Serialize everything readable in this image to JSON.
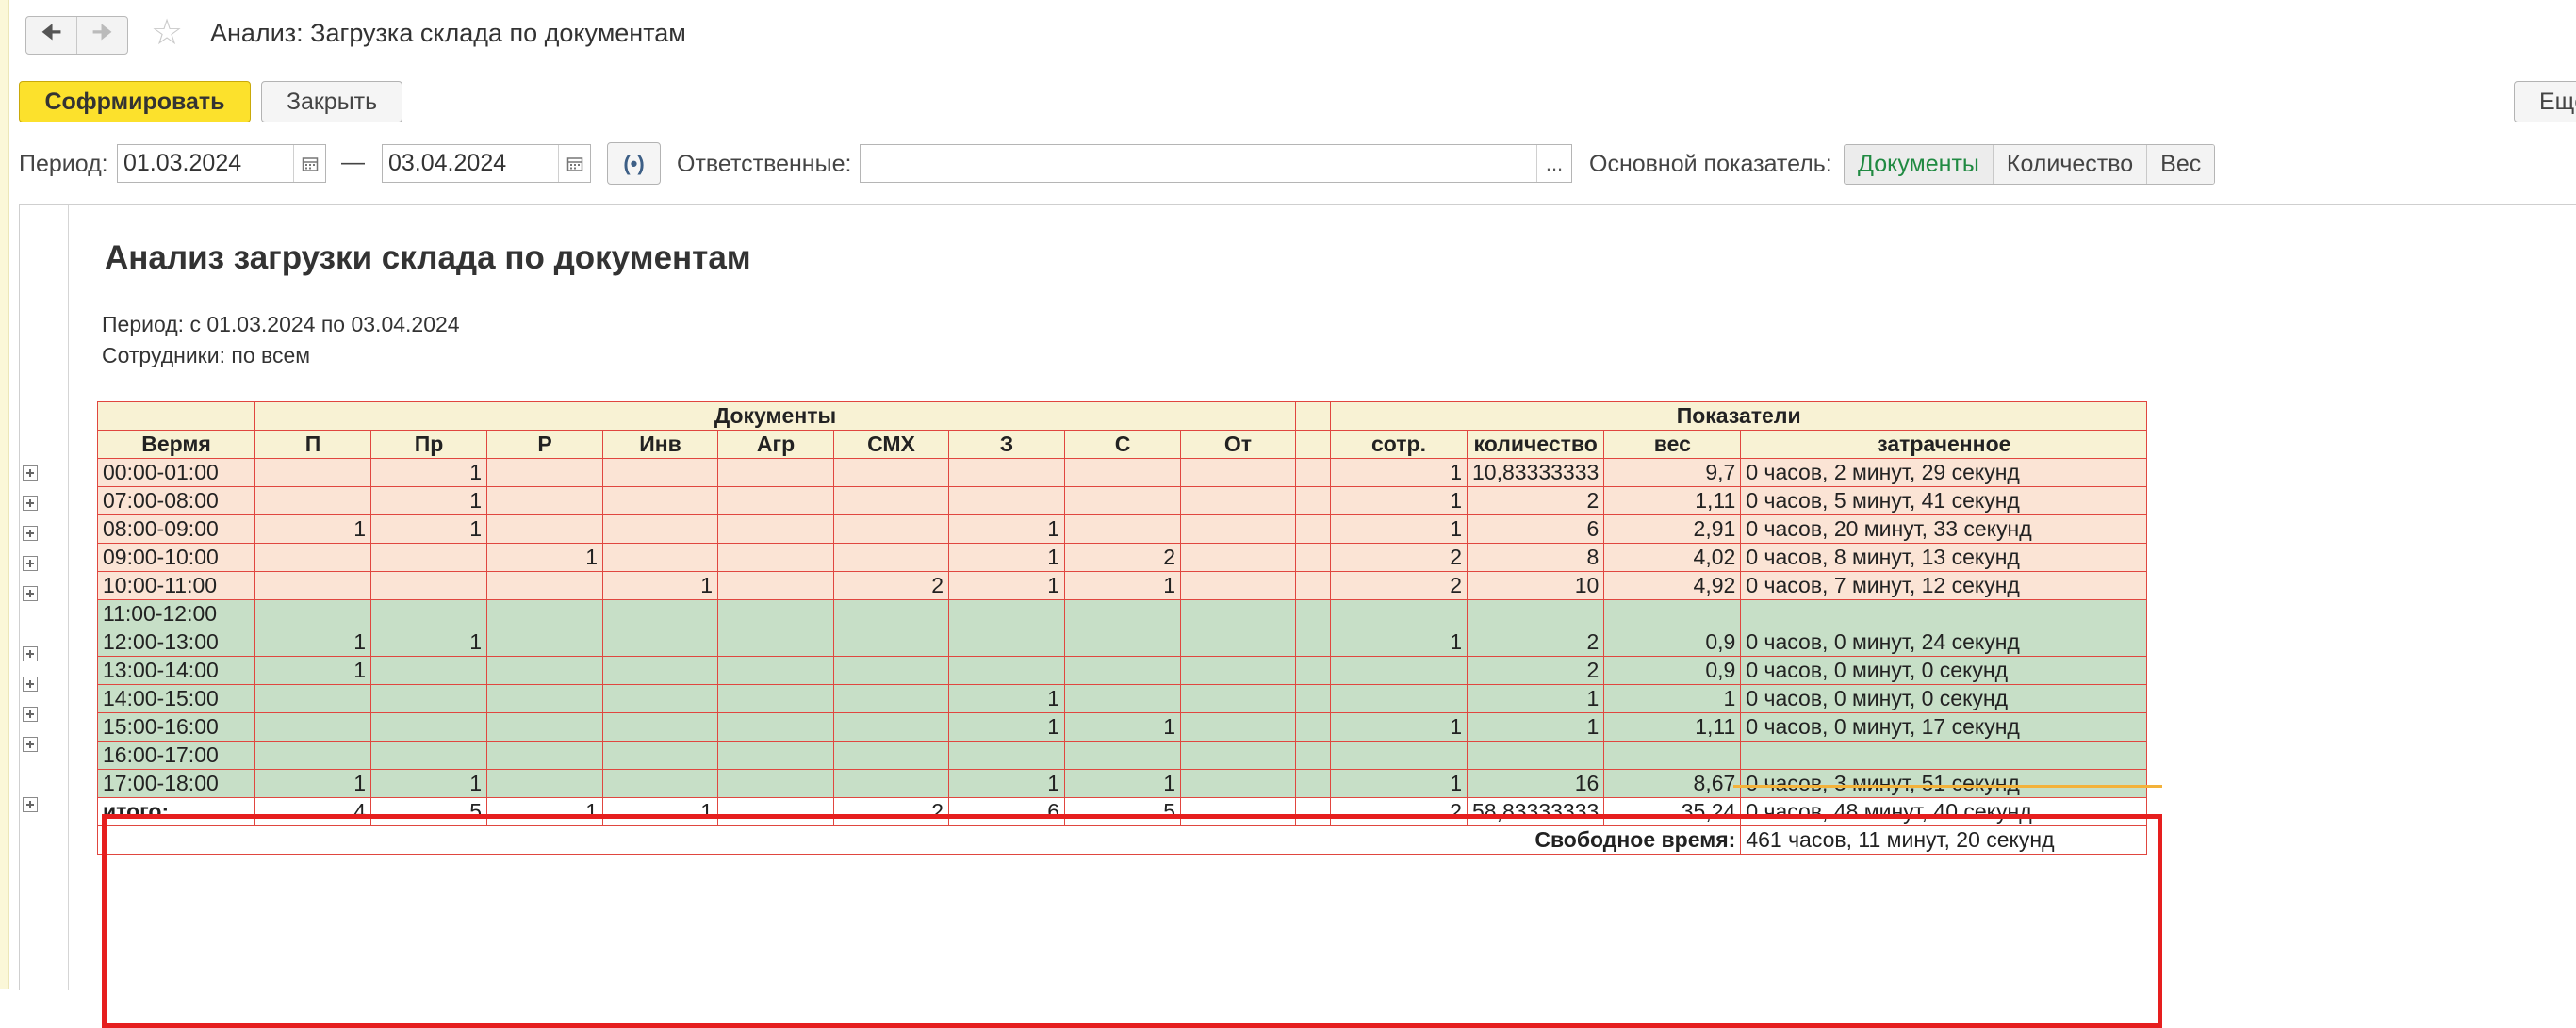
{
  "window": {
    "title": "Анализ: Загрузка склада по документам",
    "back_icon": "arrow-left-icon",
    "forward_icon": "arrow-right-icon",
    "favorite_icon": "star-icon"
  },
  "toolbar": {
    "generate_label": "Софрмировать",
    "close_label": "Закрыть",
    "more_label": "Ещё"
  },
  "filters": {
    "period_label": "Период:",
    "date_from": "01.03.2024",
    "dash": "—",
    "date_to": "03.04.2024",
    "responsible_label": "Ответственные:",
    "responsible_value": "",
    "dots": "...",
    "indicator_label": "Основной показатель:",
    "indicator_options": [
      "Документы",
      "Количество",
      "Вес"
    ],
    "indicator_selected": "Документы"
  },
  "report": {
    "title": "Анализ загрузки склада по документам",
    "period_line": "Период: с 01.03.2024 по 03.04.2024",
    "employees_line": "Сотрудники: по всем",
    "group_documents": "Документы",
    "group_indicators": "Показатели",
    "columns": [
      "Вермя",
      "П",
      "Пр",
      "Р",
      "Инв",
      "Агр",
      "СМХ",
      "З",
      "С",
      "От",
      "",
      "сотр.",
      "количество",
      "вес",
      "затраченное"
    ],
    "rows": [
      [
        "00:00-01:00",
        "",
        "1",
        "",
        "",
        "",
        "",
        "",
        "",
        "",
        "",
        "1",
        "10,83333333",
        "9,7",
        "0 часов, 2 минут, 29 секунд"
      ],
      [
        "07:00-08:00",
        "",
        "1",
        "",
        "",
        "",
        "",
        "",
        "",
        "",
        "",
        "1",
        "2",
        "1,11",
        "0 часов, 5 минут, 41 секунд"
      ],
      [
        "08:00-09:00",
        "1",
        "1",
        "",
        "",
        "",
        "",
        "1",
        "",
        "",
        "",
        "1",
        "6",
        "2,91",
        "0 часов, 20 минут, 33 секунд"
      ],
      [
        "09:00-10:00",
        "",
        "",
        "1",
        "",
        "",
        "",
        "1",
        "2",
        "",
        "",
        "2",
        "8",
        "4,02",
        "0 часов, 8 минут, 13 секунд"
      ],
      [
        "10:00-11:00",
        "",
        "",
        "",
        "1",
        "",
        "2",
        "1",
        "1",
        "",
        "",
        "2",
        "10",
        "4,92",
        "0 часов, 7 минут, 12 секунд"
      ],
      [
        "11:00-12:00",
        "",
        "",
        "",
        "",
        "",
        "",
        "",
        "",
        "",
        "",
        "",
        "",
        "",
        ""
      ],
      [
        "12:00-13:00",
        "1",
        "1",
        "",
        "",
        "",
        "",
        "",
        "",
        "",
        "",
        "1",
        "2",
        "0,9",
        "0 часов, 0 минут, 24 секунд"
      ],
      [
        "13:00-14:00",
        "1",
        "",
        "",
        "",
        "",
        "",
        "",
        "",
        "",
        "",
        "",
        "2",
        "0,9",
        "0 часов, 0 минут, 0 секунд"
      ],
      [
        "14:00-15:00",
        "",
        "",
        "",
        "",
        "",
        "",
        "1",
        "",
        "",
        "",
        "",
        "1",
        "1",
        "0 часов, 0 минут, 0 секунд"
      ],
      [
        "15:00-16:00",
        "",
        "",
        "",
        "",
        "",
        "",
        "1",
        "1",
        "",
        "",
        "1",
        "1",
        "1,11",
        "0 часов, 0 минут, 17 секунд"
      ],
      [
        "16:00-17:00",
        "",
        "",
        "",
        "",
        "",
        "",
        "",
        "",
        "",
        "",
        "",
        "",
        "",
        ""
      ],
      [
        "17:00-18:00",
        "1",
        "1",
        "",
        "",
        "",
        "",
        "1",
        "1",
        "",
        "",
        "1",
        "16",
        "8,67",
        "0 часов, 3 минут, 51 секунд"
      ]
    ],
    "row_colors": [
      "#fbe4d5",
      "#c7dfc7"
    ],
    "expandable_rows": [
      true,
      true,
      true,
      true,
      true,
      false,
      true,
      true,
      true,
      true,
      false,
      true
    ],
    "totals": [
      "итого:",
      "4",
      "5",
      "1",
      "1",
      "",
      "2",
      "6",
      "5",
      "",
      "",
      "2",
      "58,83333333",
      "35,24",
      "0 часов, 48 минут, 40 секунд"
    ],
    "free_time_label": "Свободное время:",
    "free_time_value": "461 часов, 11 минут, 20 секунд",
    "highlight_color": "#e61e1e"
  }
}
